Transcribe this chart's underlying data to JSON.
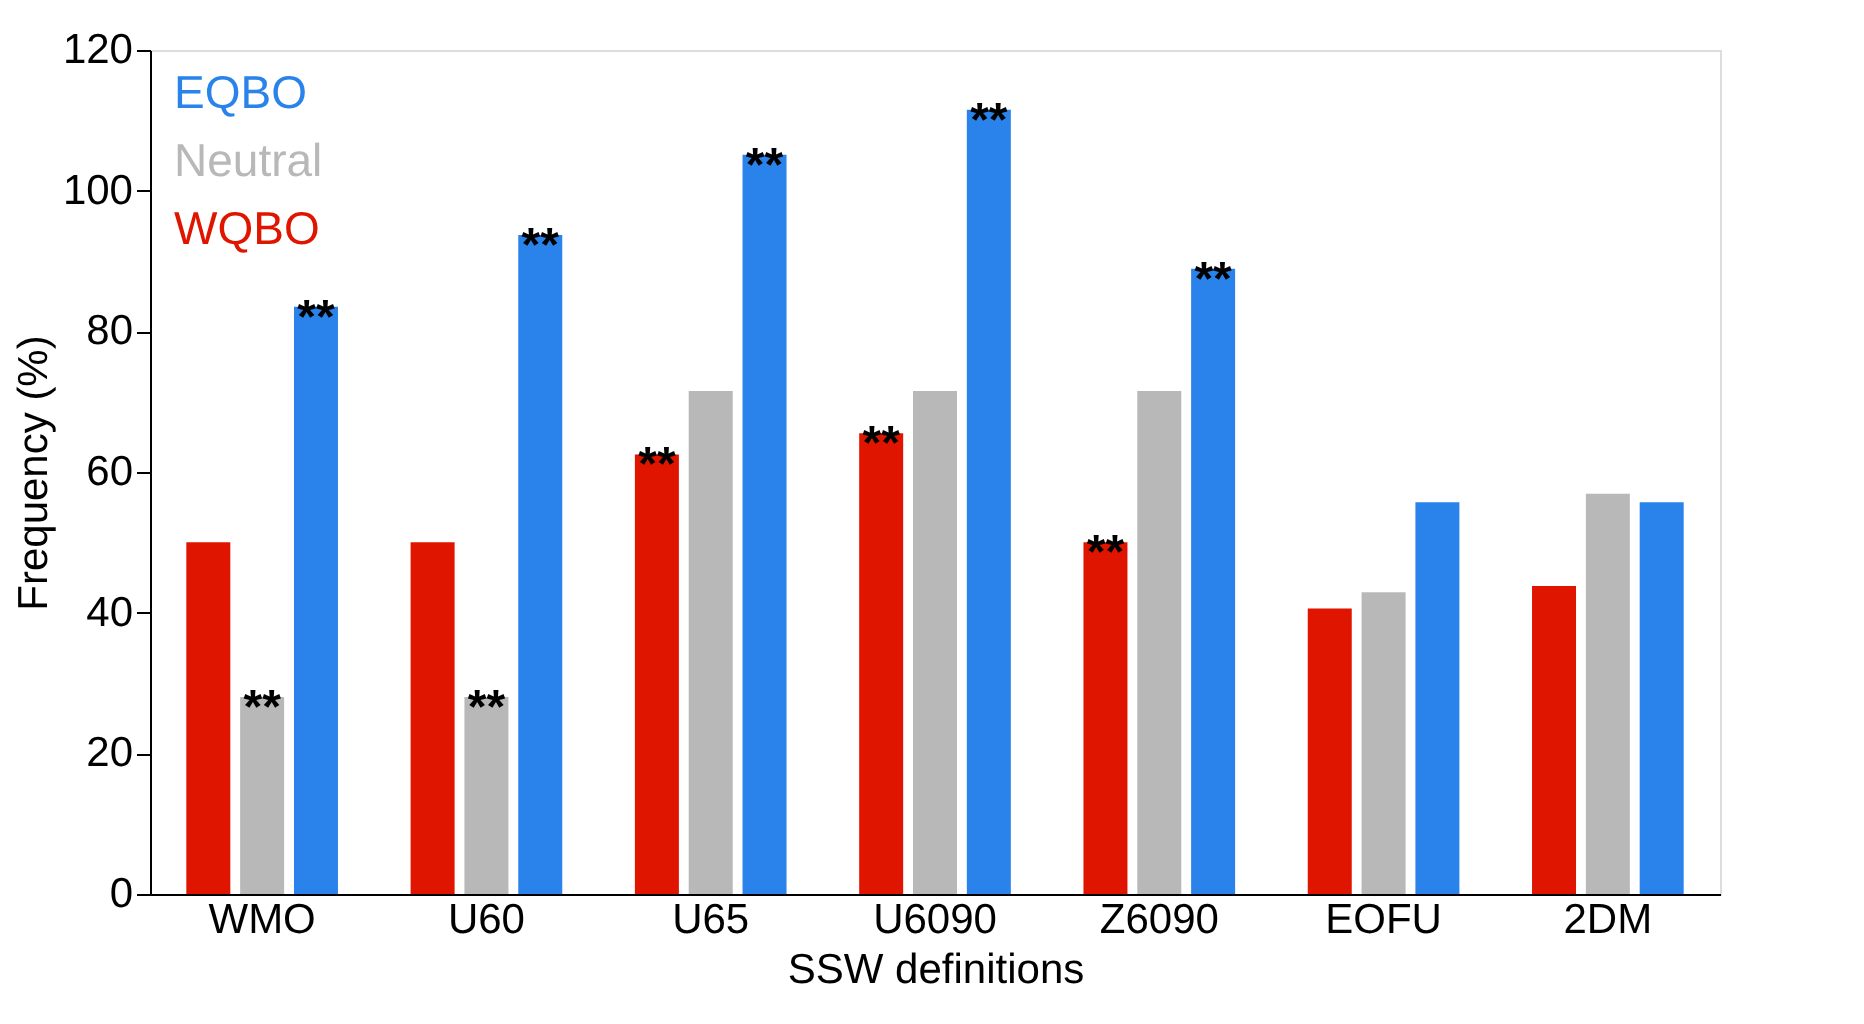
{
  "chart_data": {
    "type": "bar",
    "xlabel": "SSW definitions",
    "ylabel": "Frequency (%)",
    "categories": [
      "WMO",
      "U60",
      "U65",
      "U6090",
      "Z6090",
      "EOFU",
      "2DM"
    ],
    "series": [
      {
        "name": "WQBO",
        "color": "#e01500",
        "values": [
          50,
          50,
          62.5,
          65.5,
          50,
          40.6,
          43.8
        ],
        "value_labels": [
          null,
          null,
          "**",
          "**",
          "**",
          null,
          null
        ]
      },
      {
        "name": "Neutral",
        "color": "#b8b8b8",
        "values": [
          28,
          28,
          71.5,
          71.5,
          71.5,
          42.9,
          56.9
        ],
        "value_labels": [
          "**",
          "**",
          null,
          null,
          null,
          null,
          null
        ]
      },
      {
        "name": "EQBO",
        "color": "#2a83eb",
        "values": [
          83.5,
          93.7,
          105.1,
          111.5,
          88.9,
          55.7,
          55.7
        ],
        "value_labels": [
          "**",
          "**",
          "**",
          "**",
          "**",
          null,
          null
        ]
      }
    ],
    "ylim": [
      0,
      120
    ],
    "yticks": [
      0,
      20,
      40,
      60,
      80,
      100,
      120
    ],
    "grid": false,
    "legend": "top left"
  }
}
